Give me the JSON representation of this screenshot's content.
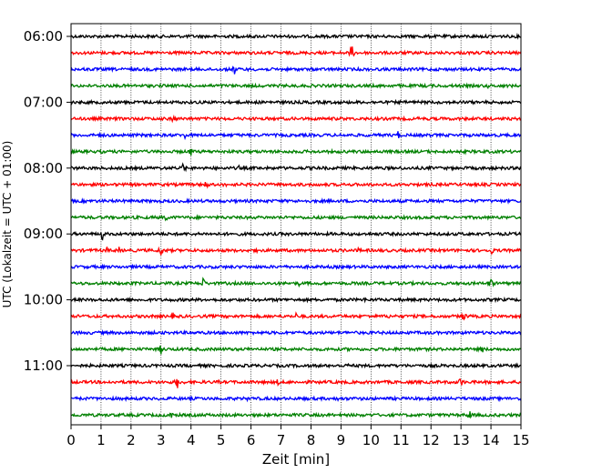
{
  "chart_data": {
    "type": "line",
    "title": "",
    "xlabel": "Zeit  [min]",
    "ylabel": "UTC (Lokalzeit = UTC + 01:00)",
    "xlim": [
      0,
      15
    ],
    "x_ticks": [
      0,
      1,
      2,
      3,
      4,
      5,
      6,
      7,
      8,
      9,
      10,
      11,
      12,
      13,
      14,
      15
    ],
    "x_tick_labels": [
      "0",
      "1",
      "2",
      "3",
      "4",
      "5",
      "6",
      "7",
      "8",
      "9",
      "10",
      "11",
      "12",
      "13",
      "14",
      "15"
    ],
    "y_tick_labels": [
      "06:00",
      "07:00",
      "08:00",
      "09:00",
      "10:00",
      "11:00"
    ],
    "y_tick_rows": [
      0,
      4,
      8,
      12,
      16,
      20
    ],
    "grid": "vertical dotted",
    "legend": "none",
    "colors": [
      "#000000",
      "#ff0000",
      "#0000ff",
      "#008000"
    ],
    "traces": [
      {
        "time": "06:00",
        "color": "#000000",
        "events": [
          [
            1.9,
            1.5
          ],
          [
            7.1,
            1.5
          ],
          [
            12.9,
            1.5
          ]
        ]
      },
      {
        "time": "06:15",
        "color": "#ff0000",
        "events": [
          [
            1.1,
            1.5
          ],
          [
            9.35,
            10
          ]
        ]
      },
      {
        "time": "06:30",
        "color": "#0000ff",
        "events": [
          [
            2.2,
            1.5
          ],
          [
            5.45,
            6
          ]
        ]
      },
      {
        "time": "06:45",
        "color": "#008000",
        "events": [
          [
            13.9,
            2.5
          ],
          [
            14.5,
            1.5
          ]
        ]
      },
      {
        "time": "07:00",
        "color": "#000000",
        "events": [
          [
            12.9,
            2.5
          ],
          [
            14.8,
            1.5
          ]
        ]
      },
      {
        "time": "07:15",
        "color": "#ff0000",
        "events": [
          [
            3.4,
            5
          ],
          [
            11.6,
            2.5
          ]
        ]
      },
      {
        "time": "07:30",
        "color": "#0000ff",
        "events": [
          [
            1.0,
            4
          ],
          [
            3.8,
            4
          ],
          [
            10.9,
            5
          ]
        ]
      },
      {
        "time": "07:45",
        "color": "#008000",
        "events": [
          [
            1.0,
            2
          ],
          [
            4.0,
            6
          ],
          [
            12.3,
            1.5
          ]
        ]
      },
      {
        "time": "08:00",
        "color": "#000000",
        "events": [
          [
            1.8,
            2
          ],
          [
            3.75,
            7
          ],
          [
            5.6,
            3
          ],
          [
            8.4,
            2.5
          ]
        ]
      },
      {
        "time": "08:15",
        "color": "#ff0000",
        "events": [
          [
            4.5,
            6
          ],
          [
            5.2,
            3
          ],
          [
            7.5,
            3
          ]
        ]
      },
      {
        "time": "08:30",
        "color": "#0000ff",
        "events": [
          [
            3.6,
            2
          ]
        ]
      },
      {
        "time": "08:45",
        "color": "#008000",
        "events": [
          [
            3.15,
            5
          ],
          [
            12.6,
            1.5
          ]
        ]
      },
      {
        "time": "09:00",
        "color": "#000000",
        "events": [
          [
            1.05,
            8
          ],
          [
            5.4,
            2
          ],
          [
            7.0,
            2
          ]
        ]
      },
      {
        "time": "09:15",
        "color": "#ff0000",
        "events": [
          [
            1.2,
            4
          ],
          [
            1.6,
            4
          ],
          [
            3.0,
            8
          ],
          [
            6.2,
            4
          ],
          [
            9.6,
            4
          ],
          [
            14.0,
            6
          ]
        ]
      },
      {
        "time": "09:30",
        "color": "#0000ff",
        "events": [
          [
            7.5,
            1.5
          ]
        ]
      },
      {
        "time": "09:45",
        "color": "#008000",
        "events": [
          [
            4.4,
            7
          ],
          [
            7.6,
            3
          ],
          [
            14.0,
            7
          ]
        ]
      },
      {
        "time": "10:00",
        "color": "#000000",
        "events": [
          [
            1.2,
            1.5
          ],
          [
            9.8,
            3
          ]
        ]
      },
      {
        "time": "10:15",
        "color": "#ff0000",
        "events": [
          [
            3.4,
            4
          ],
          [
            7.5,
            4
          ],
          [
            10.6,
            3
          ],
          [
            13.1,
            7
          ]
        ]
      },
      {
        "time": "10:30",
        "color": "#0000ff",
        "events": [
          [
            0.5,
            2
          ]
        ]
      },
      {
        "time": "10:45",
        "color": "#008000",
        "events": [
          [
            3.0,
            6
          ],
          [
            12.6,
            2
          ],
          [
            13.7,
            5
          ]
        ]
      },
      {
        "time": "11:00",
        "color": "#000000",
        "events": [
          [
            9.25,
            3
          ]
        ]
      },
      {
        "time": "11:15",
        "color": "#ff0000",
        "events": [
          [
            3.55,
            8
          ],
          [
            4.9,
            3
          ],
          [
            6.9,
            4.5
          ],
          [
            13.0,
            7
          ]
        ]
      },
      {
        "time": "11:30",
        "color": "#0000ff",
        "events": [
          [
            5.9,
            3
          ],
          [
            8.9,
            4
          ]
        ]
      },
      {
        "time": "11:45",
        "color": "#008000",
        "events": [
          [
            3.3,
            7
          ],
          [
            13.3,
            6
          ]
        ]
      }
    ]
  }
}
